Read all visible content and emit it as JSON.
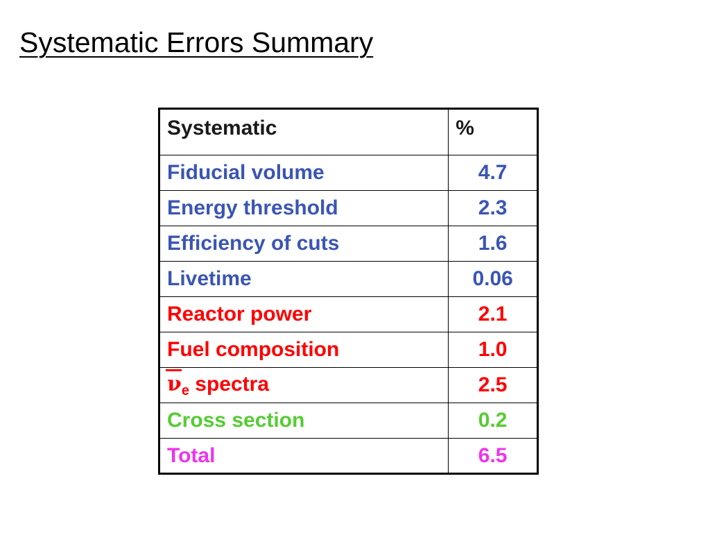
{
  "slide": {
    "title": "Systematic Errors Summary"
  },
  "table": {
    "header": {
      "name": "Systematic",
      "value": "%"
    },
    "colors": {
      "blue": "#3a55b4",
      "red": "#ff0000",
      "green": "#55cc33",
      "magenta": "#ee33ee",
      "header": "#1a1a1a"
    },
    "rows": [
      {
        "name": "Fiducial volume",
        "value": "4.7",
        "color": "#3a55b4"
      },
      {
        "name": "Energy threshold",
        "value": "2.3",
        "color": "#3a55b4"
      },
      {
        "name": "Efficiency of cuts",
        "value": "1.6",
        "color": "#3a55b4"
      },
      {
        "name": "Livetime",
        "value": "0.06",
        "color": "#3a55b4"
      },
      {
        "name": "Reactor power",
        "value": "2.1",
        "color": "#ff0000"
      },
      {
        "name": "Fuel composition",
        "value": "1.0",
        "color": "#ff0000"
      },
      {
        "name": " spectra",
        "value": "2.5",
        "color": "#ff0000",
        "symbol": "ν",
        "subscript": "e"
      },
      {
        "name": "Cross section",
        "value": "0.2",
        "color": "#55cc33"
      },
      {
        "name": "Total",
        "value": "6.5",
        "color": "#ee33ee"
      }
    ]
  }
}
